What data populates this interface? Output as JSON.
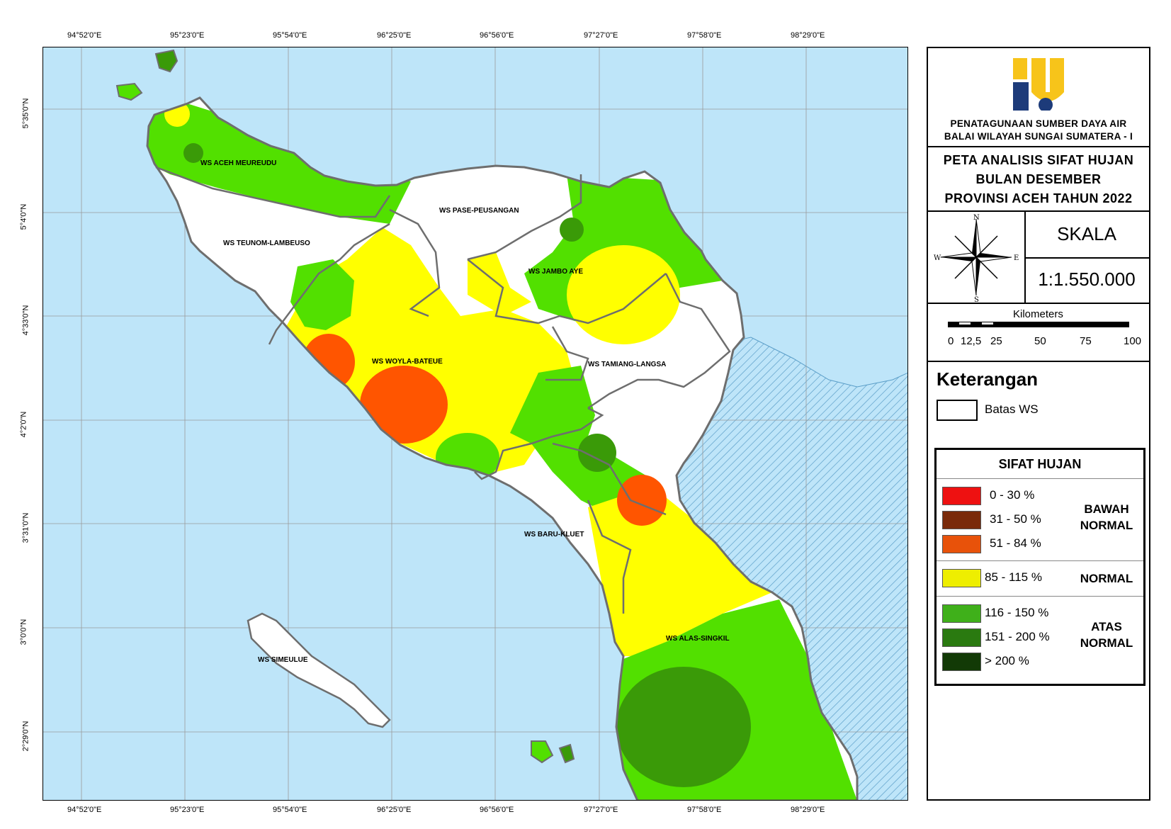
{
  "coords": {
    "top": [
      "94°52'0\"E",
      "95°23'0\"E",
      "95°54'0\"E",
      "96°25'0\"E",
      "96°56'0\"E",
      "97°27'0\"E",
      "97°58'0\"E",
      "98°29'0\"E"
    ],
    "bottom": [
      "94°52'0\"E",
      "95°23'0\"E",
      "95°54'0\"E",
      "96°25'0\"E",
      "96°56'0\"E",
      "97°27'0\"E",
      "97°58'0\"E",
      "98°29'0\"E"
    ],
    "left": [
      "5°35'0\"N",
      "5°4'0\"N",
      "4°33'0\"N",
      "4°2'0\"N",
      "3°31'0\"N",
      "3°0'0\"N",
      "2°29'0\"N"
    ]
  },
  "regions": {
    "meureudu": "WS ACEH MEUREUDU",
    "teunom": "WS TEUNOM-LAMBEUSO",
    "pase": "WS PASE-PEUSANGAN",
    "jambo": "WS JAMBO AYE",
    "woyla": "WS WOYLA-BATEUE",
    "tamiang": "WS TAMIANG-LANGSA",
    "baru": "WS BARU-KLUET",
    "alas": "WS ALAS-SINGKIL",
    "simeulue": "WS SIMEULUE"
  },
  "panel": {
    "org_line1": "PENATAGUNAAN SUMBER DAYA AIR",
    "org_line2": "BALAI WILAYAH SUNGAI SUMATERA - I",
    "title_line1": "PETA ANALISIS SIFAT HUJAN",
    "title_line2": "BULAN DESEMBER",
    "title_line3": "PROVINSI ACEH TAHUN 2022",
    "compass": {
      "n": "N",
      "s": "S",
      "e": "E",
      "w": "W"
    },
    "skala_label": "SKALA",
    "skala_value": "1:1.550.000",
    "scalebar_unit": "Kilometers",
    "scalebar_ticks": [
      "0",
      "12,5",
      "25",
      "50",
      "75",
      "100"
    ]
  },
  "legend": {
    "title": "Keterangan",
    "batas_ws": "Batas WS",
    "sifat_title": "SIFAT HUJAN",
    "groups": {
      "bawah": [
        "BAWAH",
        "NORMAL"
      ],
      "normal": "NORMAL",
      "atas": [
        "ATAS",
        "NORMAL"
      ]
    },
    "classes": [
      {
        "range": "0  -  30 %",
        "color": "#ee1111"
      },
      {
        "range": "31  -  50 %",
        "color": "#7a2a0a"
      },
      {
        "range": "51  -  84 %",
        "color": "#e8520a"
      },
      {
        "range": "85  -  115 %",
        "color": "#eeee00"
      },
      {
        "range": "116  -  150 %",
        "color": "#3fb01a"
      },
      {
        "range": "151  -  200 %",
        "color": "#2a7a10"
      },
      {
        "range": ">  200 %",
        "color": "#123a06"
      }
    ]
  },
  "colors": {
    "sea": "#bee5f9",
    "land_white": "#ffffff",
    "above_normal": "#52e000",
    "above_normal_dark": "#3a9a08",
    "normal": "#ffff00",
    "below_normal": "#ff5500",
    "border": "#6e6e6e"
  }
}
